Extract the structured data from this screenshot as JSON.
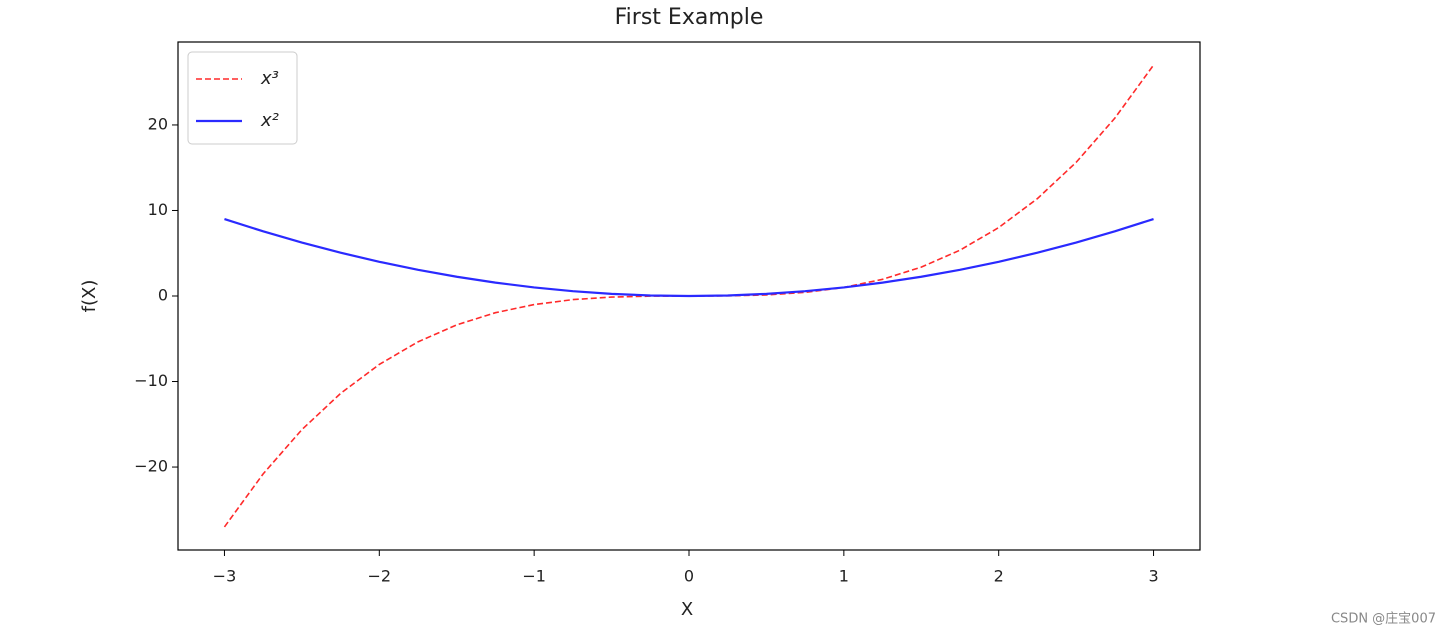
{
  "chart_data": {
    "type": "line",
    "title": "First Example",
    "x_label": "X",
    "y_label": "f(X)",
    "x": [
      -3,
      -2.75,
      -2.5,
      -2.25,
      -2,
      -1.75,
      -1.5,
      -1.25,
      -1,
      -0.75,
      -0.5,
      -0.25,
      0,
      0.25,
      0.5,
      0.75,
      1,
      1.25,
      1.5,
      1.75,
      2,
      2.25,
      2.5,
      2.75,
      3
    ],
    "series": [
      {
        "name": "x³",
        "color": "#ff2a2a",
        "linestyle": "dashed",
        "values": [
          -27,
          -20.796875,
          -15.625,
          -11.390625,
          -8,
          -5.359375,
          -3.375,
          -1.953125,
          -1,
          -0.421875,
          -0.125,
          -0.015625,
          0,
          0.015625,
          0.125,
          0.421875,
          1,
          1.953125,
          3.375,
          5.359375,
          8,
          11.390625,
          15.625,
          20.796875,
          27
        ]
      },
      {
        "name": "x²",
        "color": "#2a2aff",
        "linestyle": "solid",
        "values": [
          9,
          7.5625,
          6.25,
          5.0625,
          4,
          3.0625,
          2.25,
          1.5625,
          1,
          0.5625,
          0.25,
          0.0625,
          0,
          0.0625,
          0.25,
          0.5625,
          1,
          1.5625,
          2.25,
          3.0625,
          4,
          5.0625,
          6.25,
          7.5625,
          9
        ]
      }
    ],
    "xlim": [
      -3.3,
      3.3
    ],
    "xticks": [
      {
        "value": -3,
        "label": "−3"
      },
      {
        "value": -2,
        "label": "−2"
      },
      {
        "value": -1,
        "label": "−1"
      },
      0,
      1,
      2,
      3
    ],
    "ylim": [
      -29.7,
      29.7
    ],
    "yticks": [
      {
        "value": -20,
        "label": "−20"
      },
      {
        "value": -10,
        "label": "−10"
      },
      0,
      10,
      20
    ],
    "legend": "upper left",
    "grid": false
  },
  "watermark": "CSDN @庄宝007"
}
